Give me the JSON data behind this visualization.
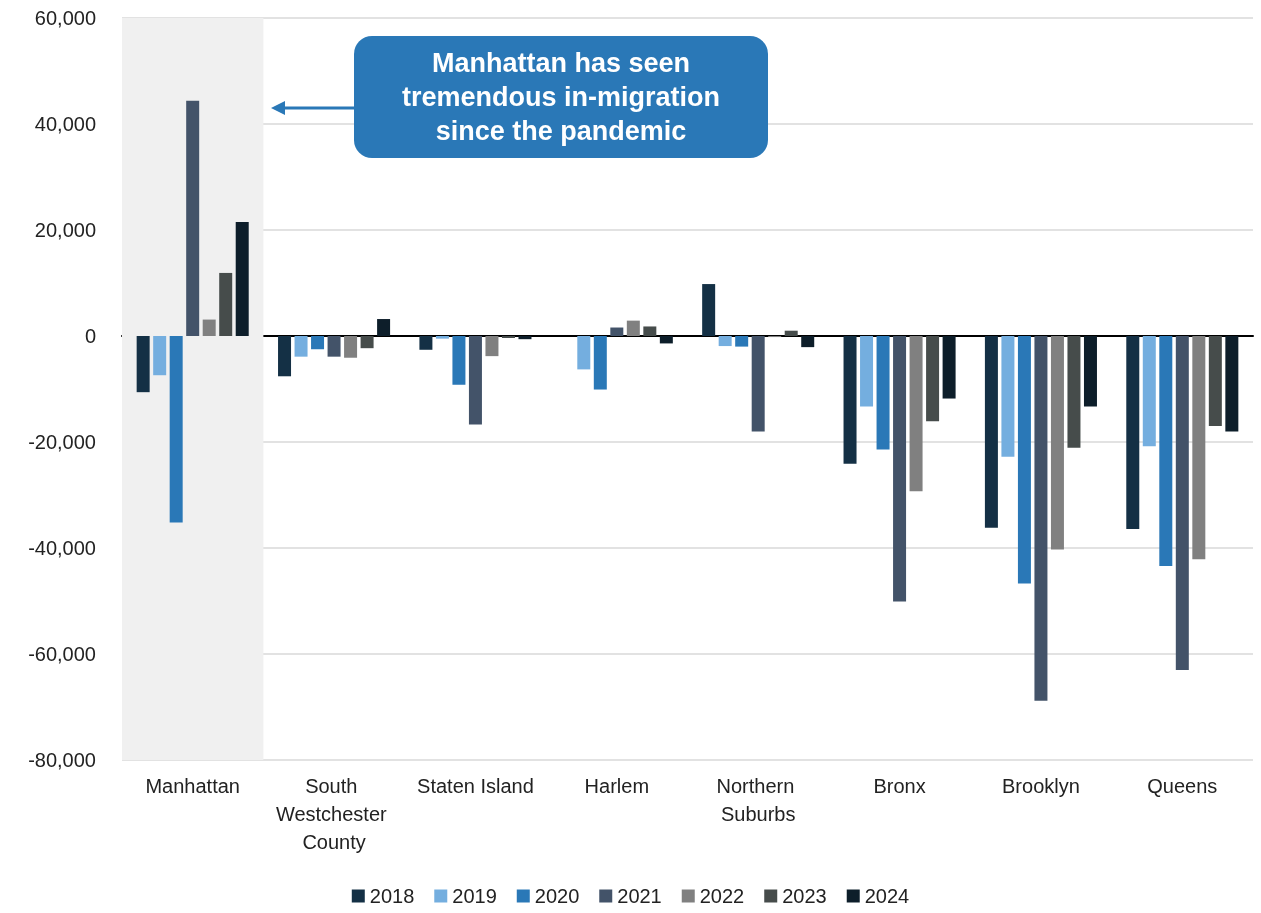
{
  "chart_data": {
    "type": "bar",
    "categories": [
      "Manhattan",
      "South Westchester County",
      "Staten Island",
      "Harlem",
      "Northern Suburbs",
      "Bronx",
      "Brooklyn",
      "Queens"
    ],
    "series": [
      {
        "name": "2018",
        "color": "#143045",
        "values": [
          -10600,
          -7600,
          -2600,
          0,
          9800,
          -24100,
          -36200,
          -36400
        ]
      },
      {
        "name": "2019",
        "color": "#74aedf",
        "values": [
          -7400,
          -3900,
          -500,
          -6300,
          -1900,
          -13300,
          -22800,
          -20800
        ]
      },
      {
        "name": "2020",
        "color": "#2a78b7",
        "values": [
          -35200,
          -2500,
          -9200,
          -10100,
          -2000,
          -21400,
          -46700,
          -43400
        ]
      },
      {
        "name": "2021",
        "color": "#435369",
        "values": [
          44400,
          -3900,
          -16700,
          1600,
          -18000,
          -50100,
          -68800,
          -63000
        ]
      },
      {
        "name": "2022",
        "color": "#808080",
        "values": [
          3100,
          -4100,
          -3800,
          2900,
          -200,
          -29300,
          -40300,
          -42100
        ]
      },
      {
        "name": "2023",
        "color": "#464c4b",
        "values": [
          11900,
          -2300,
          -400,
          1800,
          1000,
          -16100,
          -21100,
          -17000
        ]
      },
      {
        "name": "2024",
        "color": "#0d1e2a",
        "values": [
          21500,
          3200,
          -600,
          -1400,
          -2100,
          -11800,
          -13300,
          -18000
        ]
      }
    ],
    "ylim": [
      -80000,
      60000
    ],
    "yticks": [
      {
        "value": -80000,
        "label": "-80,000"
      },
      {
        "value": -60000,
        "label": "-60,000"
      },
      {
        "value": -40000,
        "label": "-40,000"
      },
      {
        "value": -20000,
        "label": "-20,000"
      },
      {
        "value": 0,
        "label": "0"
      },
      {
        "value": 20000,
        "label": "20,000"
      },
      {
        "value": 40000,
        "label": "40,000"
      },
      {
        "value": 60000,
        "label": "60,000"
      }
    ],
    "grid": "y",
    "legend": "bottom",
    "bands": [
      {
        "axis": "x",
        "from": "Manhattan",
        "to": "Manhattan",
        "color": "#f0f0f0"
      }
    ],
    "annotations": [
      "Manhattan has seen tremendous in-migration since the pandemic"
    ]
  }
}
